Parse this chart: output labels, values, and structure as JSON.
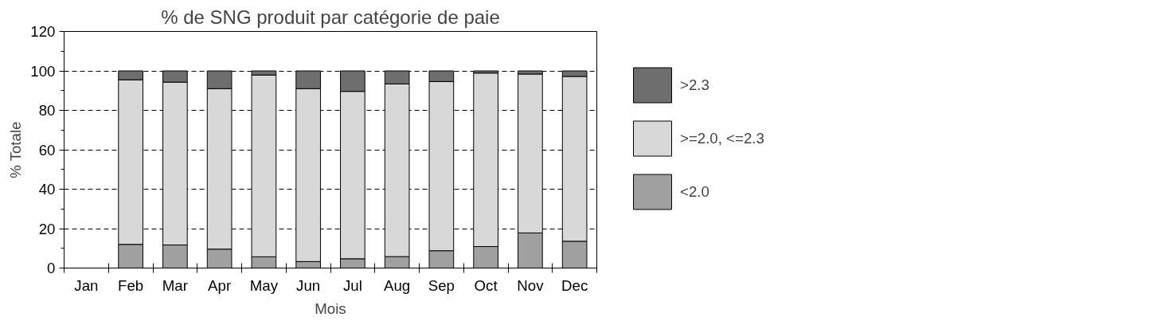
{
  "chart_data": {
    "type": "bar",
    "stacked": true,
    "title": "% de SNG produit par catégorie de paie",
    "xlabel": "Mois",
    "ylabel": "% Totale",
    "categories": [
      "Jan",
      "Feb",
      "Mar",
      "Apr",
      "May",
      "Jun",
      "Jul",
      "Aug",
      "Sep",
      "Oct",
      "Nov",
      "Dec"
    ],
    "series": [
      {
        "name": "<2.0",
        "color": "#a0a0a0",
        "values": [
          null,
          12,
          11.7,
          9.6,
          5.7,
          3.3,
          4.7,
          5.8,
          8.8,
          10.9,
          17.8,
          13.6
        ]
      },
      {
        "name": ">=2.0, <=2.3",
        "color": "#d8d8d8",
        "values": [
          null,
          83.5,
          82.6,
          81.4,
          92.2,
          87.7,
          84.9,
          87.6,
          85.8,
          88,
          80.6,
          83.6
        ]
      },
      {
        "name": ">2.3",
        "color": "#6e6e6e",
        "values": [
          null,
          4.5,
          5.7,
          9,
          2.1,
          9,
          10.4,
          6.6,
          5.4,
          1.1,
          1.6,
          2.8
        ]
      }
    ],
    "ylim": [
      0,
      120
    ],
    "yticks": [
      0,
      20,
      40,
      60,
      80,
      100,
      120
    ],
    "grid": "y",
    "legend": "right"
  }
}
